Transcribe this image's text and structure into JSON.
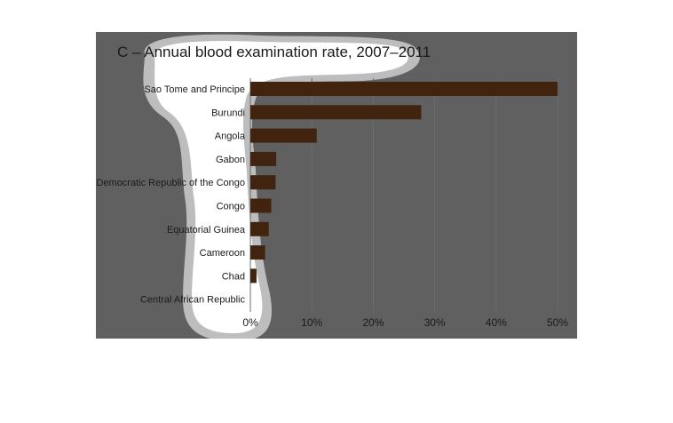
{
  "chart_data": {
    "type": "bar",
    "orientation": "horizontal",
    "title": "C – Annual blood examination rate, 2007–2011",
    "categories": [
      "Sao Tome and Principe",
      "Burundi",
      "Angola",
      "Gabon",
      "Democratic Republic of the Congo",
      "Congo",
      "Equatorial Guinea",
      "Cameroon",
      "Chad",
      "Central African Republic"
    ],
    "values": [
      50,
      27.8,
      10.8,
      4.2,
      4.1,
      3.4,
      3.0,
      2.4,
      1.0,
      0
    ],
    "xlim": [
      0,
      50
    ],
    "xticks": [
      "0%",
      "10%",
      "20%",
      "30%",
      "40%",
      "50%"
    ],
    "grid": true,
    "colors": {
      "bar": "#40240f",
      "background": "#606060",
      "highlight_outer": "#bdbdbd",
      "highlight_inner": "#ffffff",
      "text": "#1a1a1a"
    }
  }
}
